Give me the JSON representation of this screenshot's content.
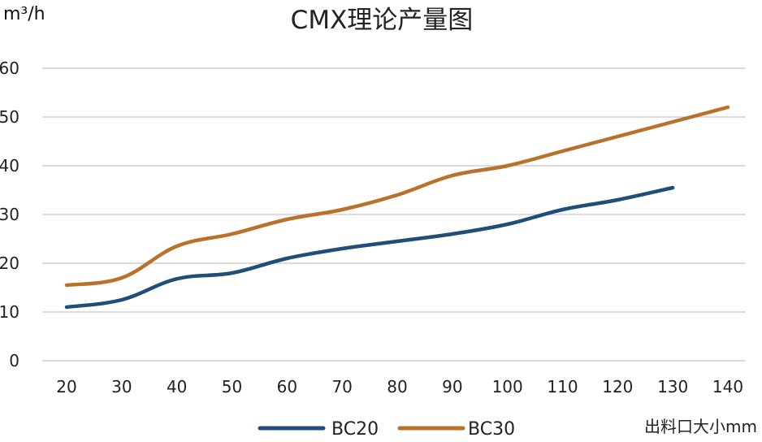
{
  "chart_data": {
    "type": "line",
    "title": "CMX理论产量图",
    "ylabel": "m³/h",
    "xlabel": "出料口大小mm",
    "ylim": [
      0,
      60
    ],
    "yticks": [
      0,
      10,
      20,
      30,
      40,
      50,
      60
    ],
    "x": [
      20,
      30,
      40,
      50,
      60,
      70,
      80,
      90,
      100,
      110,
      120,
      130,
      140
    ],
    "grid": true,
    "legend_position": "bottom",
    "series": [
      {
        "name": "BC20",
        "color": "#1f4e79",
        "values": [
          11,
          12.5,
          16.8,
          18,
          21,
          23,
          24.5,
          26,
          28,
          31,
          33,
          35.5,
          null
        ]
      },
      {
        "name": "BC30",
        "color": "#b8722c",
        "values": [
          15.5,
          17,
          23.5,
          26,
          29,
          31,
          34,
          38,
          40,
          43,
          46,
          49,
          52
        ]
      }
    ]
  }
}
